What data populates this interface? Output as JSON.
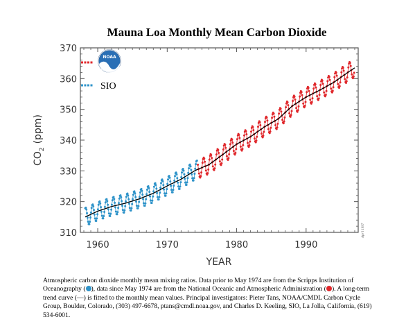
{
  "chart_data": {
    "type": "line",
    "title": "Mauna Loa Monthly Mean Carbon Dioxide",
    "xlabel": "YEAR",
    "ylabel": "CO2 (ppm)",
    "ylabel_main": "CO",
    "ylabel_sub": "2",
    "ylabel_unit": "(ppm)",
    "xlim": [
      1957.5,
      1997.5
    ],
    "ylim": [
      310,
      370
    ],
    "x_ticks": [
      1960,
      1970,
      1980,
      1990
    ],
    "y_ticks": [
      310,
      320,
      330,
      340,
      350,
      360,
      370
    ],
    "grid": false,
    "legend_position": "top-left",
    "trend": {
      "x": [
        1958.2,
        1960,
        1962,
        1964,
        1966,
        1968,
        1970,
        1972,
        1974,
        1976,
        1978,
        1980,
        1982,
        1984,
        1986,
        1988,
        1990,
        1992,
        1994,
        1996,
        1997
      ],
      "y": [
        315.0,
        316.9,
        318.4,
        319.5,
        320.9,
        322.7,
        325.1,
        327.3,
        330.1,
        332.0,
        335.3,
        338.7,
        341.1,
        344.3,
        346.9,
        351.1,
        354.0,
        356.3,
        358.8,
        362.0,
        363.5
      ]
    },
    "seasonal_amplitude_ppm": 3.0,
    "series": [
      {
        "name": "SIO",
        "period": [
          1958.2,
          1974.33
        ],
        "color": "#2e93c9"
      },
      {
        "name": "",
        "period": [
          1974.42,
          1997.0
        ],
        "color": "#e0282c"
      }
    ],
    "annotations": {
      "credit": "Apr'l 1997"
    }
  },
  "colors": {
    "sio": "#2e93c9",
    "noaa": "#e0282c",
    "trend_line": "#000000",
    "axis": "#555555"
  },
  "legend": {
    "items": [
      {
        "label": "",
        "icon": "noaa-logo-icon",
        "color": "#e0282c"
      },
      {
        "label": "SIO",
        "color": "#2e93c9"
      }
    ],
    "logo_text": "NOAA"
  },
  "caption": {
    "part1": "Atmospheric carbon dioxide monthly mean mixing ratios.  Data prior to May 1974 are from the Scripps Institution of Oceanography (",
    "part2": "), data since May 1974 are from the National Oceanic and Atmospheric Administration (",
    "part3": ").  A long-term trend curve (—) is fitted to the monthly mean values. Principal investigators:  Pieter Tans, NOAA/CMDL Carbon Cycle Group, Boulder, Colorado, (303) 497-6678, ptans@cmdl.noaa.gov, and Charles D. Keeling, SIO, La Jolla, California, (619) 534-6001."
  }
}
